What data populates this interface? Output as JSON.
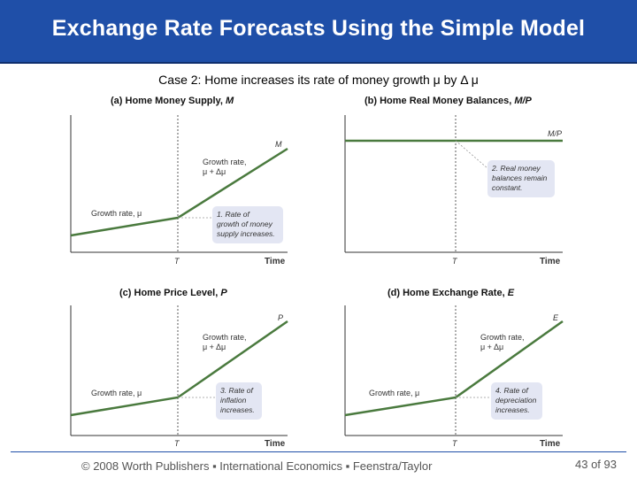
{
  "slide": {
    "title": "Exchange Rate Forecasts Using the Simple Model",
    "subtitle": "Case 2: Home increases its rate of money growth μ by Δ μ",
    "footer": "© 2008 Worth Publishers ▪ International Economics ▪ Feenstra/Taylor",
    "page_number": "43 of 93"
  },
  "colors": {
    "title_bar": "#1f4fa8",
    "line": "#4a7a3e",
    "callout": "#e3e6f3"
  },
  "panels": {
    "a": {
      "title_prefix": "(a) Home Money Supply, ",
      "title_var": "M",
      "curve_label": "M",
      "t_label": "T",
      "x_label": "Time",
      "slow_label": "Growth rate, μ",
      "fast_label_1": "Growth rate,",
      "fast_label_2": "μ + Δμ",
      "note_1": "1. Rate of",
      "note_2": "growth of money",
      "note_3": "supply increases."
    },
    "b": {
      "title_prefix": "(b) Home Real Money Balances, ",
      "title_var": "M/P",
      "curve_label": "M/P",
      "t_label": "T",
      "x_label": "Time",
      "note_1": "2. Real money",
      "note_2": "balances remain",
      "note_3": "constant."
    },
    "c": {
      "title_prefix": "(c) Home Price Level, ",
      "title_var": "P",
      "curve_label": "P",
      "t_label": "T",
      "x_label": "Time",
      "slow_label": "Growth rate, μ",
      "fast_label_1": "Growth rate,",
      "fast_label_2": "μ + Δμ",
      "note_1": "3. Rate of",
      "note_2": "inflation",
      "note_3": "increases."
    },
    "d": {
      "title_prefix": "(d) Home Exchange Rate, ",
      "title_var": "E",
      "curve_label": "E",
      "t_label": "T",
      "x_label": "Time",
      "slow_label": "Growth rate, μ",
      "fast_label_1": "Growth rate,",
      "fast_label_2": "μ + Δμ",
      "note_1": "4. Rate of",
      "note_2": "depreciation",
      "note_3": "increases."
    }
  }
}
